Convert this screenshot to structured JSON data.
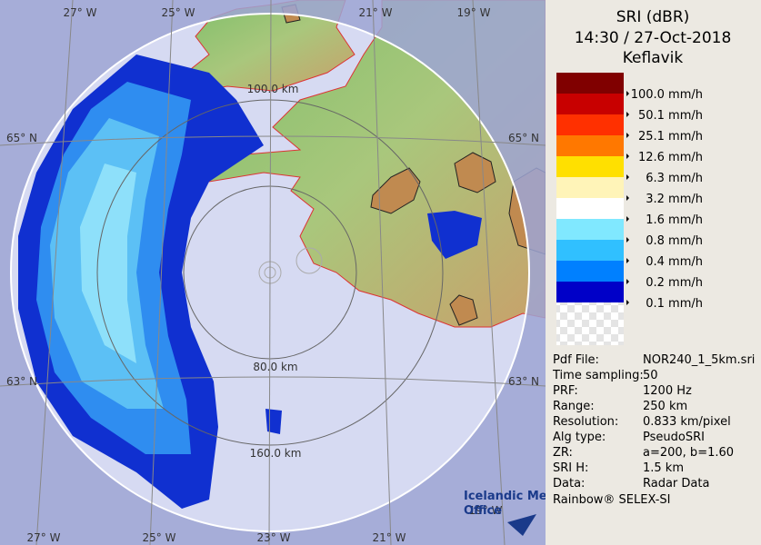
{
  "map": {
    "range_labels": [
      "100.0 km",
      "80.0 km",
      "160.0 km"
    ],
    "lon_labels": [
      "27° W",
      "25° W",
      "23° W",
      "21° W",
      "19° W"
    ],
    "lat_labels": [
      "65° N",
      "63° N"
    ],
    "logo": [
      "Icelandic Met",
      "Office"
    ]
  },
  "panel": {
    "title": "SRI (dBR)",
    "time": "14:30 / 27-Oct-2018",
    "site": "Keflavik",
    "legend": [
      "100.0 mm/h",
      "50.1 mm/h",
      "25.1 mm/h",
      "12.6 mm/h",
      "6.3 mm/h",
      "3.2 mm/h",
      "1.6 mm/h",
      "0.8 mm/h",
      "0.4 mm/h",
      "0.2 mm/h",
      "0.1 mm/h"
    ],
    "info": [
      [
        "Pdf File:",
        "NOR240_1_5km.sri"
      ],
      [
        "Time sampling:",
        "50"
      ],
      [
        "PRF:",
        "1200 Hz"
      ],
      [
        "Range:",
        "250 km"
      ],
      [
        "Resolution:",
        "0.833 km/pixel"
      ],
      [
        "Alg type:",
        "PseudoSRI"
      ],
      [
        "ZR:",
        "a=200, b=1.60"
      ],
      [
        "SRI H:",
        "1.5 km"
      ],
      [
        "Data:",
        "Radar Data"
      ]
    ],
    "footer": "Rainbow® SELEX-SI"
  }
}
